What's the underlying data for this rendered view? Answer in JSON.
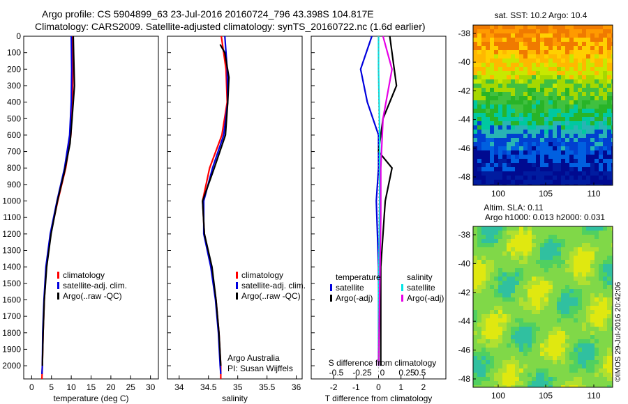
{
  "header": {
    "line1": "Argo profile: CS 5904899_63 23-Jul-2016 20160724_796 43.398S 104.817E",
    "line2": "Climatology: CARS2009. Satellite-adjusted climatology: synTS_20160722.nc (1.6d earlier)"
  },
  "colors": {
    "climatology": "#ff0000",
    "satellite": "#0000dd",
    "argo": "#000000",
    "sat_s": "#00e5e5",
    "argo_s": "#e600e6"
  },
  "chart_data": [
    {
      "type": "line",
      "xlabel": "temperature (deg C)",
      "ylabel": "",
      "xlim": [
        -2,
        32
      ],
      "ylim": [
        2080,
        0
      ],
      "xticks": [
        "0",
        "5",
        "10",
        "15",
        "20",
        "25",
        "30"
      ],
      "yticks": [
        "0",
        "100",
        "200",
        "300",
        "400",
        "500",
        "600",
        "700",
        "800",
        "900",
        "1000",
        "1100",
        "1200",
        "1300",
        "1400",
        "1500",
        "1600",
        "1700",
        "1800",
        "1900",
        "2000"
      ],
      "legend": [
        "climatology",
        "satellite-adj. clim.",
        "Argo(..raw -QC)"
      ],
      "series": [
        {
          "name": "climatology",
          "points": [
            [
              10.3,
              0
            ],
            [
              10.4,
              200
            ],
            [
              10.3,
              400
            ],
            [
              9.9,
              600
            ],
            [
              8.6,
              800
            ],
            [
              6.6,
              1000
            ],
            [
              4.8,
              1200
            ],
            [
              3.7,
              1400
            ],
            [
              3.2,
              1600
            ],
            [
              2.9,
              1800
            ],
            [
              2.7,
              2000
            ],
            [
              2.6,
              2080
            ]
          ]
        },
        {
          "name": "satellite-adj. clim.",
          "points": [
            [
              10.0,
              0
            ],
            [
              10.1,
              200
            ],
            [
              10.0,
              400
            ],
            [
              9.6,
              600
            ],
            [
              8.3,
              800
            ],
            [
              6.4,
              1000
            ],
            [
              4.7,
              1200
            ],
            [
              3.6,
              1400
            ],
            [
              3.1,
              1600
            ],
            [
              2.8,
              1800
            ],
            [
              2.7,
              2000
            ],
            [
              2.6,
              2050
            ]
          ]
        },
        {
          "name": "Argo(..raw -QC)",
          "points": [
            [
              10.5,
              0
            ],
            [
              10.6,
              100
            ],
            [
              10.8,
              300
            ],
            [
              10.2,
              500
            ],
            [
              9.7,
              650
            ],
            [
              8.3,
              820
            ],
            [
              6.5,
              1000
            ],
            [
              4.9,
              1200
            ],
            [
              3.8,
              1400
            ],
            [
              3.2,
              1600
            ],
            [
              2.9,
              1800
            ],
            [
              2.7,
              2000
            ]
          ]
        }
      ]
    },
    {
      "type": "line",
      "xlabel": "salinity",
      "xlim": [
        33.8,
        36.1
      ],
      "ylim": [
        2080,
        0
      ],
      "xticks": [
        "34",
        "34.5",
        "35",
        "35.5",
        "36"
      ],
      "legend": [
        "climatology",
        "satellite-adj. clim.",
        "Argo(..raw -QC)"
      ],
      "annotation": [
        "Argo Australia",
        "PI: Susan Wijffels"
      ],
      "series": [
        {
          "name": "climatology",
          "points": [
            [
              34.72,
              0
            ],
            [
              34.8,
              200
            ],
            [
              34.82,
              400
            ],
            [
              34.73,
              600
            ],
            [
              34.52,
              800
            ],
            [
              34.4,
              1000
            ],
            [
              34.43,
              1200
            ],
            [
              34.55,
              1400
            ],
            [
              34.63,
              1600
            ],
            [
              34.68,
              1800
            ],
            [
              34.71,
              2000
            ],
            [
              34.71,
              2080
            ]
          ]
        },
        {
          "name": "satellite-adj. clim.",
          "points": [
            [
              34.78,
              0
            ],
            [
              34.82,
              200
            ],
            [
              34.83,
              400
            ],
            [
              34.76,
              600
            ],
            [
              34.57,
              800
            ],
            [
              34.42,
              1000
            ],
            [
              34.42,
              1200
            ],
            [
              34.54,
              1400
            ],
            [
              34.62,
              1600
            ],
            [
              34.67,
              1800
            ],
            [
              34.7,
              2000
            ],
            [
              34.71,
              2050
            ]
          ]
        },
        {
          "name": "Argo(..raw -QC)",
          "points": [
            [
              34.7,
              50
            ],
            [
              34.78,
              100
            ],
            [
              34.85,
              250
            ],
            [
              34.83,
              400
            ],
            [
              34.79,
              600
            ],
            [
              34.6,
              800
            ],
            [
              34.4,
              1000
            ],
            [
              34.43,
              1200
            ],
            [
              34.56,
              1400
            ],
            [
              34.63,
              1600
            ],
            [
              34.68,
              1800
            ],
            [
              34.71,
              2000
            ]
          ]
        }
      ]
    },
    {
      "type": "line",
      "xlabel": "T difference from climatology",
      "xlabel_top": "S difference from climatology",
      "xlim": [
        -3,
        3
      ],
      "ylim": [
        2080,
        0
      ],
      "xticks": [
        "-2",
        "-1",
        "0",
        "1",
        "2"
      ],
      "xticks_top": [
        "-0.5",
        "-0.25",
        "0",
        "0.25",
        "0.5"
      ],
      "legend_left_title": "temperature",
      "legend_right_title": "salinity",
      "legend_left": [
        "satellite",
        "Argo(-adj)"
      ],
      "legend_right": [
        "satellite",
        "Argo(-adj)"
      ],
      "series": [
        {
          "name": "T satellite",
          "points": [
            [
              -0.3,
              0
            ],
            [
              -0.8,
              200
            ],
            [
              -0.5,
              400
            ],
            [
              0,
              600
            ],
            [
              0,
              800
            ],
            [
              -0.1,
              1000
            ],
            [
              0,
              1400
            ],
            [
              0,
              2000
            ]
          ]
        },
        {
          "name": "T Argo",
          "points": [
            [
              0.5,
              0
            ],
            [
              0.8,
              300
            ],
            [
              0.2,
              500
            ],
            [
              0,
              700
            ],
            [
              0.6,
              800
            ],
            [
              0.3,
              1000
            ],
            [
              0.1,
              1400
            ],
            [
              0.1,
              2000
            ]
          ]
        },
        {
          "name": "S satellite",
          "points": [
            [
              0,
              0
            ],
            [
              0,
              200
            ],
            [
              0.05,
              600
            ],
            [
              0.05,
              1000
            ],
            [
              0,
              1600
            ],
            [
              0,
              2000
            ]
          ]
        },
        {
          "name": "S Argo",
          "points": [
            [
              0.2,
              0
            ],
            [
              0.6,
              200
            ],
            [
              0.2,
              500
            ],
            [
              0.1,
              800
            ],
            [
              0.1,
              1100
            ],
            [
              0,
              2000
            ]
          ]
        }
      ]
    },
    {
      "type": "heatmap",
      "title": "sat. SST: 10.2  Argo: 10.4",
      "xticks": [
        "100",
        "105",
        "110"
      ],
      "yticks": [
        "-38",
        "-40",
        "-42",
        "-44",
        "-46",
        "-48"
      ]
    },
    {
      "type": "heatmap",
      "title": "Altim. SLA: 0.11",
      "subtitle": "Argo h1000: 0.013 h2000: 0.031",
      "xticks": [
        "100",
        "105",
        "110"
      ],
      "yticks": [
        "-38",
        "-40",
        "-42",
        "-44",
        "-46",
        "-48"
      ]
    }
  ],
  "footer": {
    "credit": "©IMOS 29-Jul-2016 20:42:06"
  }
}
